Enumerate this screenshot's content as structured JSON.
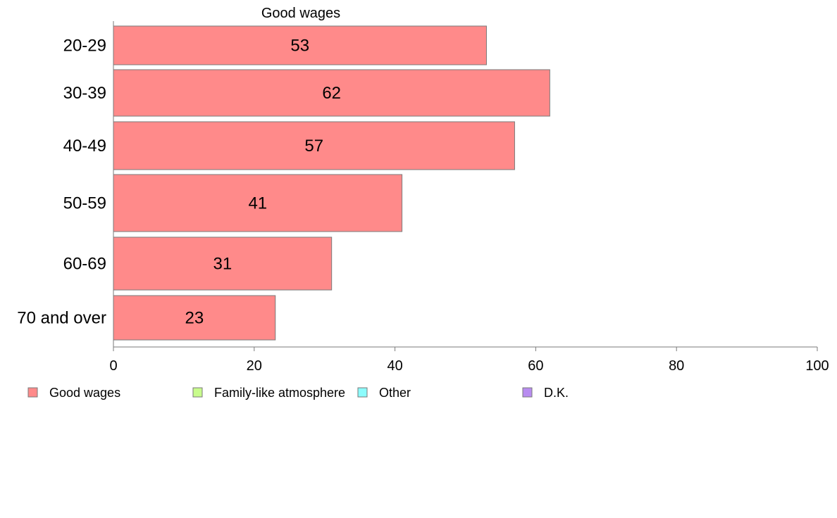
{
  "chart_data": {
    "type": "bar",
    "orientation": "horizontal",
    "title": "Good wages",
    "categories": [
      "20-29",
      "30-39",
      "40-49",
      "50-59",
      "60-69",
      "70 and over"
    ],
    "series": [
      {
        "name": "Good wages",
        "values": [
          53,
          62,
          57,
          41,
          31,
          23
        ],
        "color": "#ff8a8a"
      }
    ],
    "xlim": [
      0,
      100
    ],
    "xticks": [
      0,
      20,
      40,
      60,
      80,
      100
    ],
    "legend_position": "bottom",
    "grid": false,
    "legend": [
      {
        "label": "Good wages",
        "color": "#ff8a8a"
      },
      {
        "label": "Family-like atmosphere",
        "color": "#c8fc8c"
      },
      {
        "label": "Other",
        "color": "#8cfcfc"
      },
      {
        "label": "D.K.",
        "color": "#b88cf0"
      }
    ]
  }
}
